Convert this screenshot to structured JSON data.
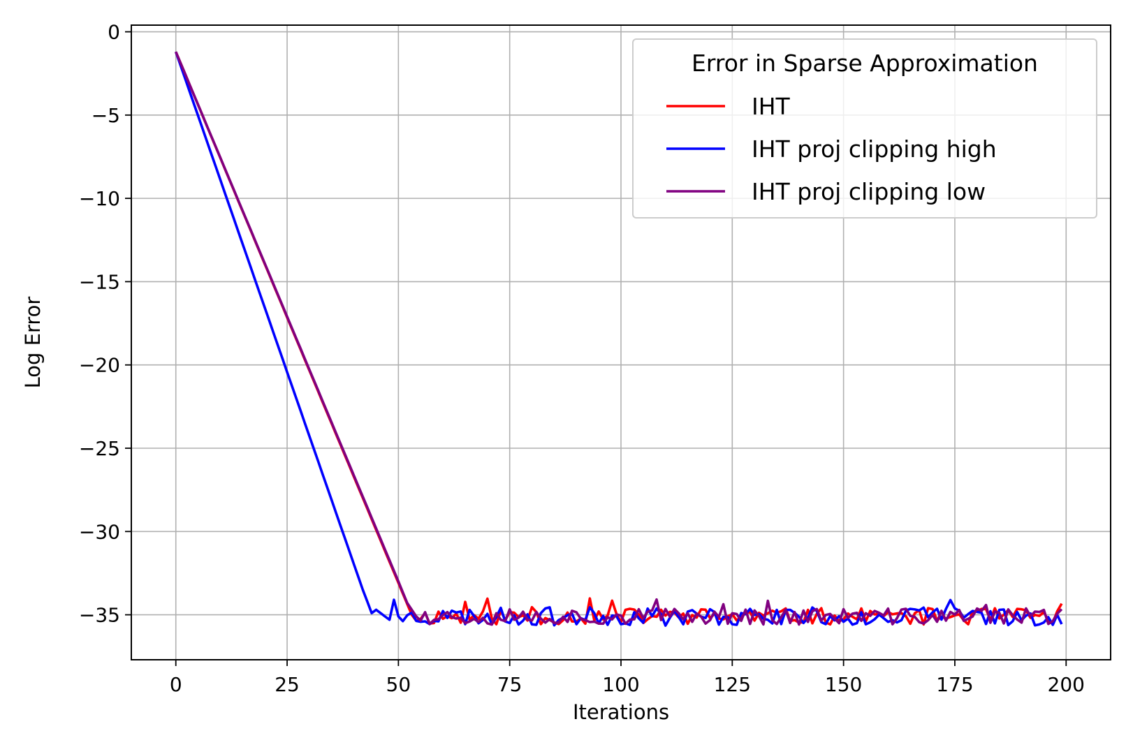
{
  "chart_data": {
    "type": "line",
    "title": "",
    "xlabel": "Iterations",
    "ylabel": "Log Error",
    "xlim": [
      -10,
      210
    ],
    "ylim": [
      -37.7,
      0.4
    ],
    "xticks": [
      0,
      25,
      50,
      75,
      100,
      125,
      150,
      175,
      200
    ],
    "yticks": [
      0,
      -5,
      -10,
      -15,
      -20,
      -25,
      -30,
      -35
    ],
    "xtick_labels": [
      "0",
      "25",
      "50",
      "75",
      "100",
      "125",
      "150",
      "175",
      "200"
    ],
    "ytick_labels": [
      "0",
      "−5",
      "−10",
      "−15",
      "−20",
      "−25",
      "−30",
      "−35"
    ],
    "grid": true,
    "legend": {
      "title": "Error in Sparse Approximation",
      "placement": "top-right"
    },
    "series": [
      {
        "name": "IHT",
        "color": "#ff0000",
        "descent": [
          [
            0,
            -1.2
          ],
          [
            53,
            -35.0
          ]
        ],
        "noise_start": 53,
        "noise_end": 199,
        "noise_center": -35.1,
        "noise_amp": 0.5,
        "noise_seed": 11
      },
      {
        "name": "IHT proj clipping high",
        "color": "#0000ff",
        "descent": [
          [
            0,
            -1.2
          ],
          [
            42,
            -33.5
          ],
          [
            44,
            -34.9
          ],
          [
            45,
            -34.7
          ],
          [
            47,
            -35.1
          ],
          [
            48,
            -35.3
          ],
          [
            49,
            -34.1
          ],
          [
            50,
            -35.1
          ]
        ],
        "noise_start": 50,
        "noise_end": 199,
        "noise_center": -35.1,
        "noise_amp": 0.55,
        "noise_seed": 23
      },
      {
        "name": "IHT proj clipping low",
        "color": "#800080",
        "descent": [
          [
            0,
            -1.2
          ],
          [
            50,
            -33.0
          ],
          [
            52,
            -34.3
          ],
          [
            54,
            -35.1
          ]
        ],
        "noise_start": 54,
        "noise_end": 199,
        "noise_center": -35.1,
        "noise_amp": 0.5,
        "noise_seed": 37
      }
    ]
  }
}
